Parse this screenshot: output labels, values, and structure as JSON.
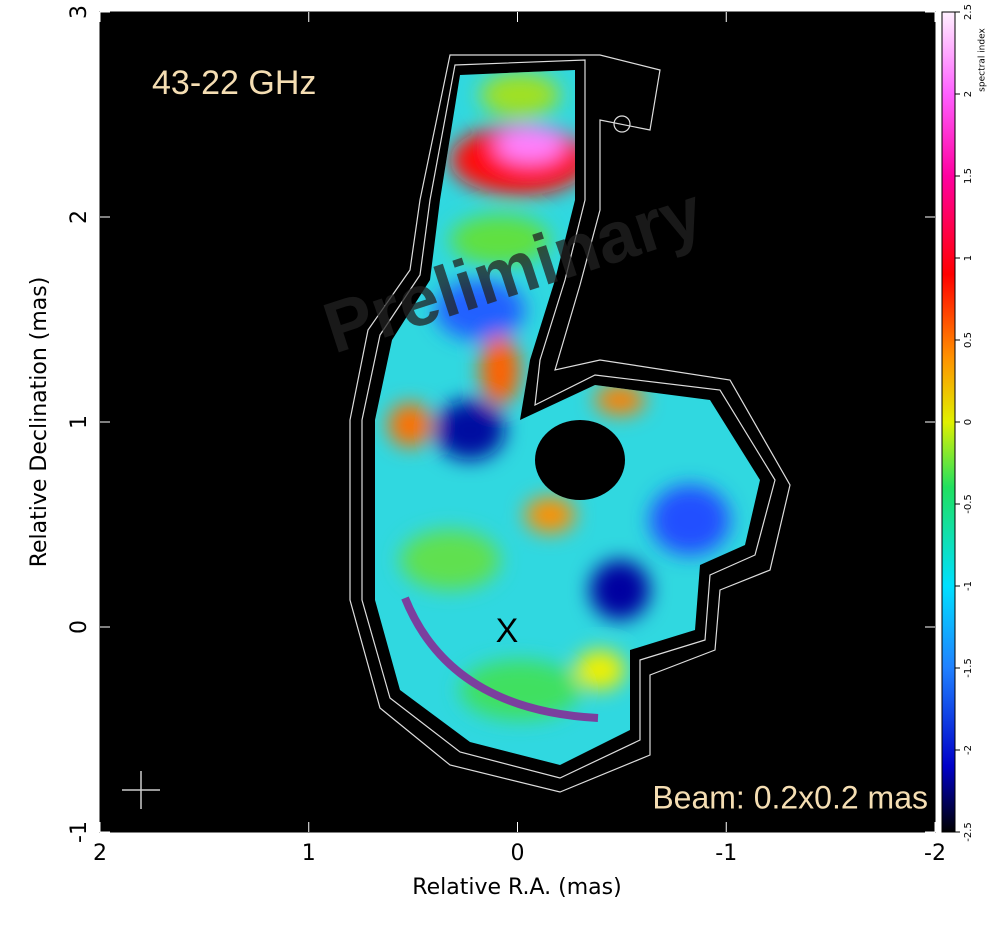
{
  "chart_data": {
    "type": "image",
    "x_label": "Relative R.A. (mas)",
    "y_label": "Relative Declination (mas)",
    "xlim": [
      2,
      -2
    ],
    "xticks": [
      2,
      1,
      0,
      -1,
      -2
    ],
    "ylim": [
      -1,
      3
    ],
    "yticks": [
      -1,
      0,
      1,
      2,
      3
    ],
    "colorbar_label": "spectral index",
    "clim": [
      -2.5,
      2.5
    ],
    "cticks": [
      -2.5,
      -2,
      -1.5,
      -1,
      -0.5,
      0,
      0.5,
      1,
      1.5,
      2,
      2.5
    ],
    "annotations": {
      "frequency": "43-22 GHz",
      "watermark": "Preliminary",
      "marker": "X",
      "beam": "Beam: 0.2x0.2 mas"
    }
  }
}
